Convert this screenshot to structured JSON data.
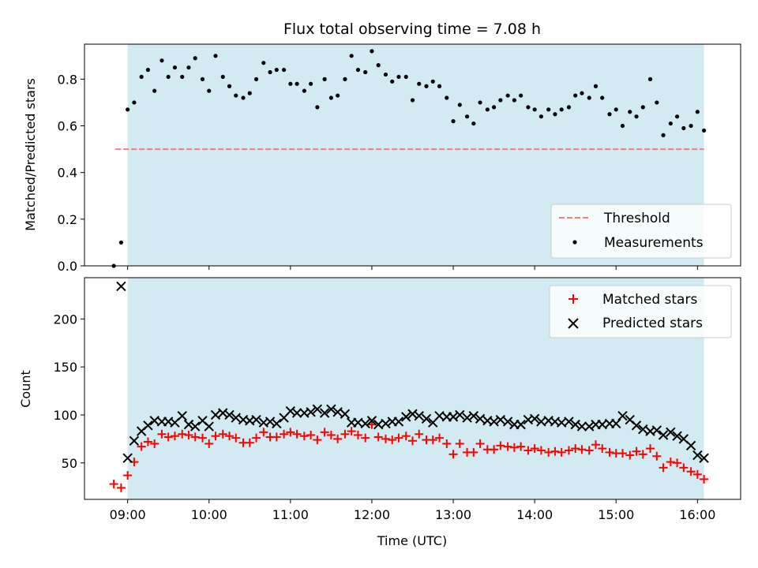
{
  "chart_data": {
    "title": "Flux total observing time = 7.08 h",
    "xlabel": "Time (UTC)",
    "x_ticks": [
      "09:00",
      "10:00",
      "11:00",
      "12:00",
      "13:00",
      "14:00",
      "15:00",
      "16:00"
    ],
    "x_range_hours": [
      8.47,
      16.53
    ],
    "shaded_interval_hours": [
      9.0,
      16.08
    ],
    "shaded_color": "#add8e6",
    "charts": [
      {
        "type": "scatter",
        "ylabel": "Matched/Predicted stars",
        "ylim": [
          0,
          0.95
        ],
        "y_ticks": [
          0.0,
          0.2,
          0.4,
          0.6,
          0.8
        ],
        "y_tick_labels": [
          "0.0",
          "0.2",
          "0.4",
          "0.6",
          "0.8"
        ],
        "threshold": {
          "name": "Threshold",
          "value": 0.5,
          "x_range_hours": [
            8.85,
            16.08
          ],
          "color": "#f08080"
        },
        "legend_position": "lower-right",
        "series": [
          {
            "name": "Measurements",
            "marker": "dot",
            "color": "#000000",
            "x": [
              8.83,
              8.92,
              9.0,
              9.08,
              9.17,
              9.25,
              9.33,
              9.42,
              9.5,
              9.58,
              9.67,
              9.75,
              9.83,
              9.92,
              10.0,
              10.08,
              10.17,
              10.25,
              10.33,
              10.42,
              10.5,
              10.58,
              10.67,
              10.75,
              10.83,
              10.92,
              11.0,
              11.08,
              11.17,
              11.25,
              11.33,
              11.42,
              11.5,
              11.58,
              11.67,
              11.75,
              11.83,
              11.92,
              12.0,
              12.08,
              12.17,
              12.25,
              12.33,
              12.42,
              12.5,
              12.58,
              12.67,
              12.75,
              12.83,
              12.92,
              13.0,
              13.08,
              13.17,
              13.25,
              13.33,
              13.42,
              13.5,
              13.58,
              13.67,
              13.75,
              13.83,
              13.92,
              14.0,
              14.08,
              14.17,
              14.25,
              14.33,
              14.42,
              14.5,
              14.58,
              14.67,
              14.75,
              14.83,
              14.92,
              15.0,
              15.08,
              15.17,
              15.25,
              15.33,
              15.42,
              15.5,
              15.58,
              15.67,
              15.75,
              15.83,
              15.92,
              16.0,
              16.08
            ],
            "y": [
              0.0,
              0.1,
              0.67,
              0.7,
              0.81,
              0.84,
              0.75,
              0.88,
              0.81,
              0.85,
              0.81,
              0.85,
              0.89,
              0.8,
              0.75,
              0.9,
              0.81,
              0.77,
              0.73,
              0.72,
              0.74,
              0.8,
              0.87,
              0.83,
              0.84,
              0.84,
              0.78,
              0.78,
              0.75,
              0.78,
              0.68,
              0.8,
              0.72,
              0.73,
              0.8,
              0.9,
              0.84,
              0.83,
              0.92,
              0.86,
              0.82,
              0.79,
              0.81,
              0.81,
              0.71,
              0.78,
              0.77,
              0.79,
              0.77,
              0.72,
              0.62,
              0.69,
              0.64,
              0.61,
              0.7,
              0.67,
              0.68,
              0.71,
              0.73,
              0.71,
              0.73,
              0.68,
              0.67,
              0.64,
              0.67,
              0.65,
              0.67,
              0.68,
              0.73,
              0.74,
              0.72,
              0.77,
              0.72,
              0.65,
              0.67,
              0.6,
              0.66,
              0.64,
              0.68,
              0.8,
              0.7,
              0.56,
              0.61,
              0.64,
              0.59,
              0.6,
              0.66,
              0.58
            ]
          }
        ]
      },
      {
        "type": "scatter",
        "ylabel": "Count",
        "ylim": [
          12,
          243
        ],
        "y_ticks": [
          50,
          100,
          150,
          200
        ],
        "y_tick_labels": [
          "50",
          "100",
          "150",
          "200"
        ],
        "legend_position": "upper-right",
        "series": [
          {
            "name": "Matched stars",
            "marker": "plus",
            "color": "#ff0000",
            "x": [
              8.83,
              8.92,
              9.0,
              9.08,
              9.17,
              9.25,
              9.33,
              9.42,
              9.5,
              9.58,
              9.67,
              9.75,
              9.83,
              9.92,
              10.0,
              10.08,
              10.17,
              10.25,
              10.33,
              10.42,
              10.5,
              10.58,
              10.67,
              10.75,
              10.83,
              10.92,
              11.0,
              11.08,
              11.17,
              11.25,
              11.33,
              11.42,
              11.5,
              11.58,
              11.67,
              11.75,
              11.83,
              11.92,
              12.0,
              12.08,
              12.17,
              12.25,
              12.33,
              12.42,
              12.5,
              12.58,
              12.67,
              12.75,
              12.83,
              12.92,
              13.0,
              13.08,
              13.17,
              13.25,
              13.33,
              13.42,
              13.5,
              13.58,
              13.67,
              13.75,
              13.83,
              13.92,
              14.0,
              14.08,
              14.17,
              14.25,
              14.33,
              14.42,
              14.5,
              14.58,
              14.67,
              14.75,
              14.83,
              14.92,
              15.0,
              15.08,
              15.17,
              15.25,
              15.33,
              15.42,
              15.5,
              15.58,
              15.67,
              15.75,
              15.83,
              15.92,
              16.0,
              16.08
            ],
            "y": [
              28,
              24,
              37,
              51,
              67,
              72,
              70,
              80,
              77,
              78,
              80,
              79,
              77,
              76,
              70,
              78,
              80,
              78,
              76,
              71,
              71,
              76,
              82,
              77,
              77,
              80,
              82,
              80,
              78,
              79,
              74,
              82,
              79,
              75,
              80,
              83,
              79,
              76,
              90,
              77,
              75,
              74,
              76,
              78,
              73,
              80,
              74,
              74,
              76,
              70,
              59,
              70,
              61,
              61,
              70,
              64,
              64,
              68,
              67,
              66,
              67,
              63,
              65,
              63,
              61,
              62,
              61,
              63,
              65,
              64,
              63,
              69,
              65,
              61,
              60,
              60,
              58,
              62,
              59,
              65,
              57,
              45,
              51,
              50,
              45,
              41,
              38,
              33
            ]
          },
          {
            "name": "Predicted stars",
            "marker": "x",
            "color": "#000000",
            "x": [
              8.92,
              9.0,
              9.08,
              9.17,
              9.25,
              9.33,
              9.42,
              9.5,
              9.58,
              9.67,
              9.75,
              9.83,
              9.92,
              10.0,
              10.08,
              10.17,
              10.25,
              10.33,
              10.42,
              10.5,
              10.58,
              10.67,
              10.75,
              10.83,
              10.92,
              11.0,
              11.08,
              11.17,
              11.25,
              11.33,
              11.42,
              11.5,
              11.58,
              11.67,
              11.75,
              11.83,
              11.92,
              12.0,
              12.08,
              12.17,
              12.25,
              12.33,
              12.42,
              12.5,
              12.58,
              12.67,
              12.75,
              12.83,
              12.92,
              13.0,
              13.08,
              13.17,
              13.25,
              13.33,
              13.42,
              13.5,
              13.58,
              13.67,
              13.75,
              13.83,
              13.92,
              14.0,
              14.08,
              14.17,
              14.25,
              14.33,
              14.42,
              14.5,
              14.58,
              14.67,
              14.75,
              14.83,
              14.92,
              15.0,
              15.08,
              15.17,
              15.25,
              15.33,
              15.42,
              15.5,
              15.58,
              15.67,
              15.75,
              15.83,
              15.92,
              16.0,
              16.08
            ],
            "y": [
              234,
              55,
              73,
              83,
              89,
              94,
              93,
              93,
              92,
              99,
              90,
              88,
              94,
              88,
              100,
              102,
              100,
              97,
              95,
              94,
              95,
              92,
              93,
              91,
              97,
              104,
              102,
              102,
              103,
              106,
              102,
              106,
              103,
              101,
              92,
              92,
              91,
              94,
              90,
              91,
              93,
              93,
              98,
              101,
              99,
              96,
              92,
              99,
              98,
              98,
              100,
              97,
              99,
              96,
              94,
              93,
              95,
              93,
              90,
              90,
              95,
              96,
              93,
              94,
              93,
              92,
              93,
              90,
              88,
              88,
              90,
              90,
              91,
              91,
              99,
              95,
              89,
              85,
              83,
              84,
              79,
              82,
              78,
              75,
              68,
              58,
              55
            ]
          }
        ]
      }
    ]
  }
}
